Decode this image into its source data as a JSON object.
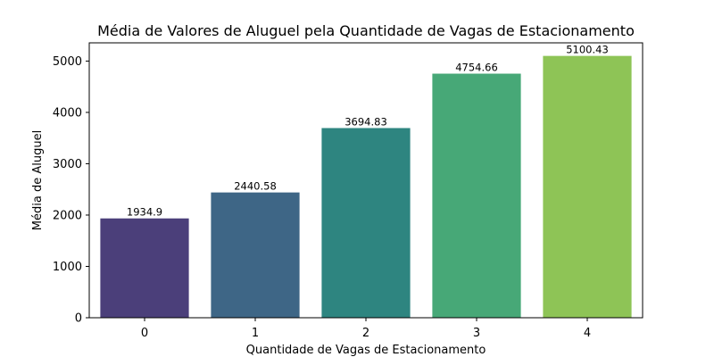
{
  "chart_data": {
    "type": "bar",
    "title": "Média de Valores de Aluguel pela Quantidade de Vagas de Estacionamento",
    "xlabel": "Quantidade de Vagas de Estacionamento",
    "ylabel": "Média de Aluguel",
    "categories": [
      "0",
      "1",
      "2",
      "3",
      "4"
    ],
    "values": [
      1934.9,
      2440.58,
      3694.83,
      4754.66,
      5100.43
    ],
    "data_labels": [
      "1934.9",
      "2440.58",
      "3694.83",
      "4754.66",
      "5100.43"
    ],
    "colors": [
      "#4b3f7a",
      "#3e6686",
      "#2e8580",
      "#47a877",
      "#8ec456"
    ],
    "ylim": [
      0,
      5355
    ],
    "yticks": [
      0,
      1000,
      2000,
      3000,
      4000,
      5000
    ],
    "grid": false,
    "legend": "none"
  }
}
